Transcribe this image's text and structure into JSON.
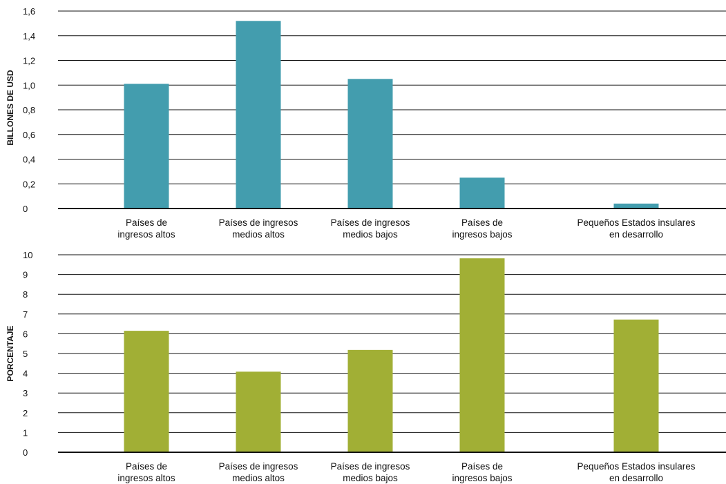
{
  "chart_data": [
    {
      "type": "bar",
      "ylabel": "BILLONES DE USD",
      "ylim": [
        0,
        1.6
      ],
      "yticks": [
        "0",
        "0,2",
        "0,4",
        "0,6",
        "0,8",
        "1,0",
        "1,2",
        "1,4",
        "1,6"
      ],
      "categories": [
        [
          "Países de",
          "ingresos altos"
        ],
        [
          "Países de ingresos",
          "medios altos"
        ],
        [
          "Países de ingresos",
          "medios bajos"
        ],
        [
          "Países de",
          "ingresos bajos"
        ],
        [
          "Pequeños Estados insulares",
          "en desarrollo"
        ]
      ],
      "values": [
        1.01,
        1.52,
        1.05,
        0.25,
        0.04
      ],
      "color": "#439DAE",
      "grid": true
    },
    {
      "type": "bar",
      "ylabel": "PORCENTAJE",
      "ylim": [
        0,
        10
      ],
      "yticks": [
        "0",
        "1",
        "2",
        "3",
        "4",
        "5",
        "6",
        "7",
        "8",
        "9",
        "10"
      ],
      "categories": [
        [
          "Países de",
          "ingresos altos"
        ],
        [
          "Países de ingresos",
          "medios altos"
        ],
        [
          "Países de ingresos",
          "medios bajos"
        ],
        [
          "Países de",
          "ingresos bajos"
        ],
        [
          "Pequeños Estados insulares",
          "en desarrollo"
        ]
      ],
      "values": [
        6.15,
        4.08,
        5.18,
        9.82,
        6.72
      ],
      "color": "#A1AF35",
      "grid": true
    }
  ]
}
